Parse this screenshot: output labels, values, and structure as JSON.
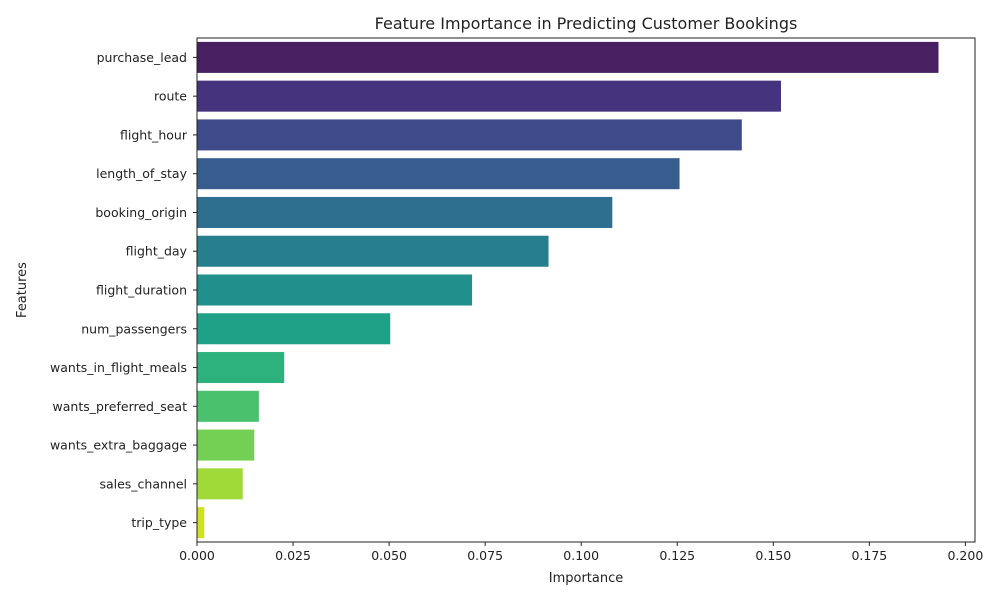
{
  "chart_data": {
    "type": "bar",
    "orientation": "horizontal",
    "title": "Feature Importance in Predicting Customer Bookings",
    "xlabel": "Importance",
    "ylabel": "Features",
    "xlim": [
      0,
      0.2025
    ],
    "xticks": [
      "0.000",
      "0.025",
      "0.050",
      "0.075",
      "0.100",
      "0.125",
      "0.150",
      "0.175",
      "0.200"
    ],
    "xtick_values": [
      0,
      0.025,
      0.05,
      0.075,
      0.1,
      0.125,
      0.15,
      0.175,
      0.2
    ],
    "grid": false,
    "categories": [
      "purchase_lead",
      "route",
      "flight_hour",
      "length_of_stay",
      "booking_origin",
      "flight_day",
      "flight_duration",
      "num_passengers",
      "wants_in_flight_meals",
      "wants_preferred_seat",
      "wants_extra_baggage",
      "sales_channel",
      "trip_type"
    ],
    "values": [
      0.193,
      0.152,
      0.1418,
      0.1256,
      0.1081,
      0.0915,
      0.0716,
      0.0503,
      0.0227,
      0.0161,
      0.0149,
      0.0119,
      0.0019
    ],
    "colors": [
      "#482062",
      "#46337e",
      "#3f4a8a",
      "#365d8d",
      "#2e6e8e",
      "#277f8e",
      "#21908d",
      "#1fa187",
      "#2db27d",
      "#4ac16d",
      "#74d055",
      "#a0da39",
      "#cfe11c"
    ]
  }
}
